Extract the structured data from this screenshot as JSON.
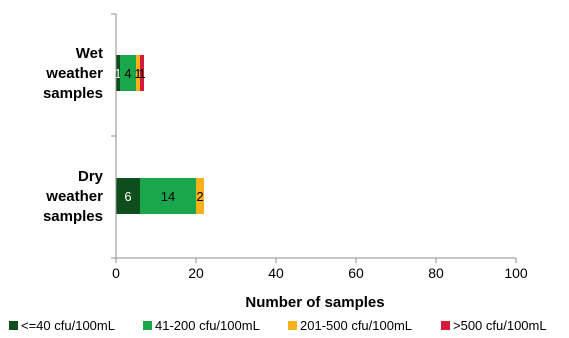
{
  "chart_data": {
    "type": "bar",
    "orientation": "horizontal",
    "stacked": true,
    "categories": [
      "Wet weather samples",
      "Dry weather samples"
    ],
    "category_lines": [
      [
        "Wet",
        "weather",
        "samples"
      ],
      [
        "Dry",
        "weather",
        "samples"
      ]
    ],
    "series": [
      {
        "name": "<=40 cfu/100mL",
        "color": "#0e4d1c",
        "values": [
          1,
          6
        ],
        "labels": [
          "1",
          "6"
        ]
      },
      {
        "name": "41-200 cfu/100mL",
        "color": "#1aa64b",
        "values": [
          4,
          14
        ],
        "labels": [
          "4",
          "14"
        ]
      },
      {
        "name": "201-500 cfu/100mL",
        "color": "#f7b21b",
        "values": [
          1,
          2
        ],
        "labels": [
          "1",
          "2"
        ]
      },
      {
        "name": ">500 cfu/100mL",
        "color": "#d7193a",
        "values": [
          1,
          0
        ],
        "labels": [
          "1",
          ""
        ]
      }
    ],
    "xlabel": "Number of samples",
    "xlim": [
      0,
      100
    ],
    "xticks": [
      0,
      20,
      40,
      60,
      80,
      100
    ],
    "grid": false,
    "legend_position": "bottom"
  }
}
